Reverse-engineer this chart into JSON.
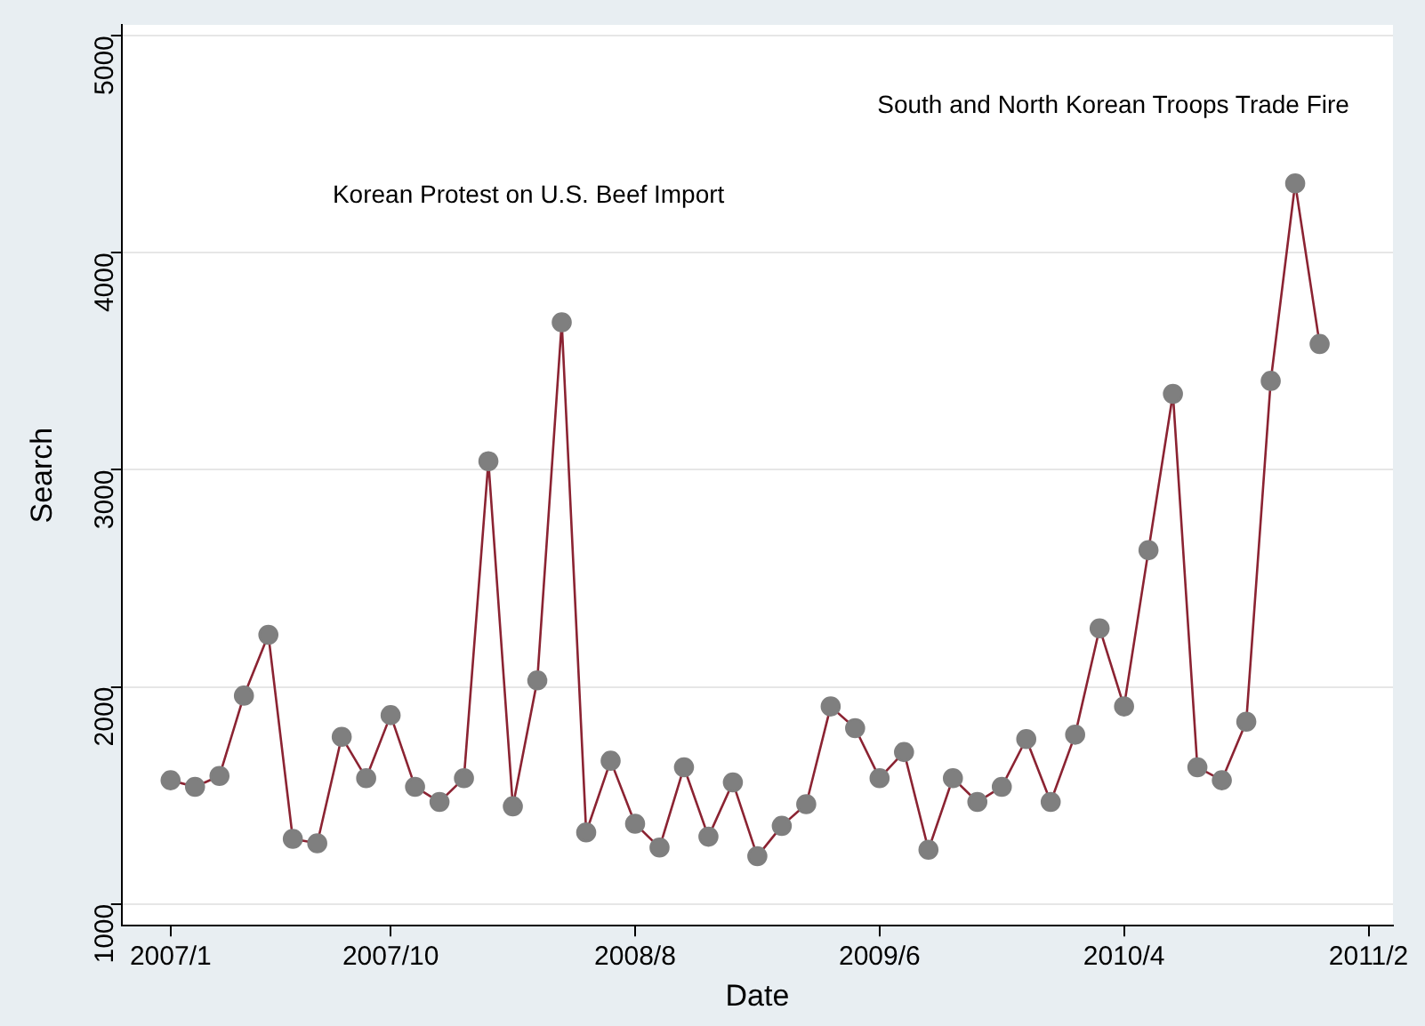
{
  "chart_data": {
    "type": "line",
    "xlabel": "Date",
    "ylabel": "Search",
    "x": [
      "2007-01",
      "2007-02",
      "2007-03",
      "2007-04",
      "2007-05",
      "2007-06",
      "2007-07",
      "2007-08",
      "2007-09",
      "2007-10",
      "2007-11",
      "2007-12",
      "2008-01",
      "2008-02",
      "2008-03",
      "2008-04",
      "2008-05",
      "2008-06",
      "2008-07",
      "2008-08",
      "2008-09",
      "2008-10",
      "2008-11",
      "2008-12",
      "2009-01",
      "2009-02",
      "2009-03",
      "2009-04",
      "2009-05",
      "2009-06",
      "2009-07",
      "2009-08",
      "2009-09",
      "2009-10",
      "2009-11",
      "2009-12",
      "2010-01",
      "2010-02",
      "2010-03",
      "2010-04",
      "2010-05",
      "2010-06",
      "2010-07",
      "2010-08",
      "2010-09",
      "2010-10",
      "2010-11",
      "2010-12"
    ],
    "series": [
      {
        "color": "#8b2332",
        "values": [
          1570,
          1540,
          1590,
          1960,
          2240,
          1300,
          1280,
          1770,
          1580,
          1870,
          1540,
          1470,
          1580,
          3040,
          1450,
          2030,
          3680,
          1330,
          1660,
          1370,
          1260,
          1630,
          1310,
          1560,
          1220,
          1360,
          1460,
          1910,
          1810,
          1580,
          1700,
          1250,
          1580,
          1470,
          1540,
          1760,
          1470,
          1780,
          2270,
          1910,
          2630,
          3350,
          1630,
          1570,
          1840,
          3410,
          4320,
          3580
        ]
      }
    ],
    "marker": "circle",
    "xlim": [
      "2006-11",
      "2011-03"
    ],
    "xticks": [
      {
        "value": "2007-01",
        "label": "2007/1"
      },
      {
        "value": "2007-10",
        "label": "2007/10"
      },
      {
        "value": "2008-08",
        "label": "2008/8"
      },
      {
        "value": "2009-06",
        "label": "2009/6"
      },
      {
        "value": "2010-04",
        "label": "2010/4"
      },
      {
        "value": "2011-02",
        "label": "2011/2"
      }
    ],
    "ylim": [
      900,
      5050
    ],
    "yticks": [
      1000,
      2000,
      3000,
      4000,
      5000
    ],
    "grid": "y",
    "legend": false,
    "annotations": [
      "Korean Protest on U.S. Beef Import",
      "South and North Korean Troops Trade Fire"
    ]
  }
}
